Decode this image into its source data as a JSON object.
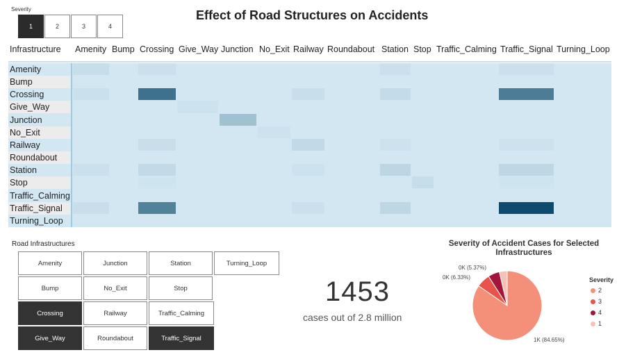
{
  "severity_slicer": {
    "title": "Severity",
    "options": [
      "1",
      "2",
      "3",
      "4"
    ],
    "selected": "1"
  },
  "title": "Effect of Road Structures on Accidents",
  "matrix": {
    "corner_label": "Infrastructure",
    "columns": [
      "Amenity",
      "Bump",
      "Crossing",
      "Give_Way",
      "Junction",
      "No_Exit",
      "Railway",
      "Roundabout",
      "Station",
      "Stop",
      "Traffic_Calming",
      "Traffic_Signal",
      "Turning_Loop"
    ],
    "rows": [
      "Amenity",
      "Bump",
      "Crossing",
      "Give_Way",
      "Junction",
      "No_Exit",
      "Railway",
      "Roundabout",
      "Station",
      "Stop",
      "Traffic_Calming",
      "Traffic_Signal",
      "Turning_Loop"
    ],
    "base_color": "#d2e7f2",
    "max_color": "#0d4a6b",
    "intensity": [
      [
        0.06,
        0,
        0.04,
        0,
        0,
        0,
        0,
        0,
        0.04,
        0,
        0,
        0.04,
        0
      ],
      [
        0,
        0,
        0,
        0,
        0,
        0,
        0,
        0,
        0,
        0,
        0,
        0,
        0
      ],
      [
        0.04,
        0,
        0.75,
        0,
        0,
        0,
        0.05,
        0,
        0.07,
        0,
        0,
        0.68,
        0
      ],
      [
        0,
        0,
        0,
        0.03,
        0,
        0,
        0,
        0,
        0,
        0,
        0,
        0,
        0
      ],
      [
        0,
        0,
        0,
        0,
        0.25,
        0,
        0,
        0,
        0,
        0,
        0,
        0,
        0
      ],
      [
        0,
        0,
        0,
        0,
        0,
        0.03,
        0,
        0,
        0,
        0,
        0,
        0,
        0
      ],
      [
        0,
        0,
        0.05,
        0,
        0,
        0,
        0.08,
        0,
        0.03,
        0,
        0,
        0.03,
        0
      ],
      [
        0,
        0,
        0,
        0,
        0,
        0,
        0,
        0,
        0,
        0,
        0,
        0,
        0
      ],
      [
        0.04,
        0,
        0.08,
        0,
        0,
        0,
        0.03,
        0,
        0.11,
        0,
        0,
        0.1,
        0
      ],
      [
        0,
        0,
        0.02,
        0,
        0,
        0,
        0,
        0,
        0,
        0.06,
        0,
        0.02,
        0
      ],
      [
        0,
        0,
        0,
        0,
        0,
        0,
        0,
        0,
        0,
        0,
        0,
        0,
        0
      ],
      [
        0.05,
        0,
        0.65,
        0,
        0,
        0,
        0.04,
        0,
        0.1,
        0,
        0,
        1.0,
        0
      ],
      [
        0,
        0,
        0,
        0,
        0,
        0,
        0,
        0,
        0,
        0,
        0,
        0,
        0
      ]
    ]
  },
  "infra_slicer": {
    "title": "Road Infrastructures",
    "buttons": [
      {
        "label": "Amenity",
        "selected": false
      },
      {
        "label": "Junction",
        "selected": false
      },
      {
        "label": "Station",
        "selected": false
      },
      {
        "label": "Turning_Loop",
        "selected": false
      },
      {
        "label": "Bump",
        "selected": false
      },
      {
        "label": "No_Exit",
        "selected": false
      },
      {
        "label": "Stop",
        "selected": false
      },
      {
        "label": "Crossing",
        "selected": true
      },
      {
        "label": "Railway",
        "selected": false
      },
      {
        "label": "Traffic_Calming",
        "selected": false
      },
      {
        "label": "Give_Way",
        "selected": true
      },
      {
        "label": "Roundabout",
        "selected": false
      },
      {
        "label": "Traffic_Signal",
        "selected": true
      }
    ]
  },
  "card": {
    "value": "1453",
    "label": "cases out of 2.8 million"
  },
  "pie": {
    "title": "Severity of Accident Cases for Selected Infrastructures",
    "legend_title": "Severity",
    "slices": [
      {
        "name": "2",
        "percent": 84.65,
        "label": "1K (84.65%)",
        "color": "#f4907a"
      },
      {
        "name": "3",
        "percent": 6.33,
        "label": "0K (6.33%)",
        "color": "#e8534a"
      },
      {
        "name": "4",
        "percent": 5.37,
        "label": "0K (5.37%)",
        "color": "#a3153a"
      },
      {
        "name": "1",
        "percent": 3.65,
        "label": "",
        "color": "#f7c2b6"
      }
    ]
  }
}
